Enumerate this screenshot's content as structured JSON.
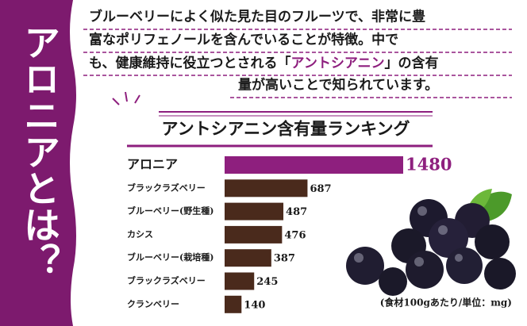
{
  "side_title": "アロニアとは？",
  "intro": {
    "line1": "ブルーベリーによく似た見た目のフルーツで、非常に豊",
    "line2": "富なポリフェノールを含んでいることが特徴。中で",
    "line3a": "も、健康維持に役立つとされる「",
    "line3b": "アントシアニン",
    "line3c": "」の含有",
    "line4": "量が高いことで知られています。"
  },
  "note": "(食材100gあたり/単位：mg)",
  "chart_data": {
    "type": "bar",
    "title": "アントシアニン含有量ランキング",
    "categories": [
      "アロニア",
      "ブラックラズベリー",
      "ブルーベリー(野生種)",
      "カシス",
      "ブルーベリー(栽培種)",
      "ブラックラズベリー",
      "クランベリー"
    ],
    "values": [
      1480,
      687,
      487,
      476,
      387,
      245,
      140
    ],
    "colors": [
      "#8e1f7e",
      "#4a2a1c",
      "#4a2a1c",
      "#4a2a1c",
      "#4a2a1c",
      "#4a2a1c",
      "#4a2a1c"
    ]
  }
}
